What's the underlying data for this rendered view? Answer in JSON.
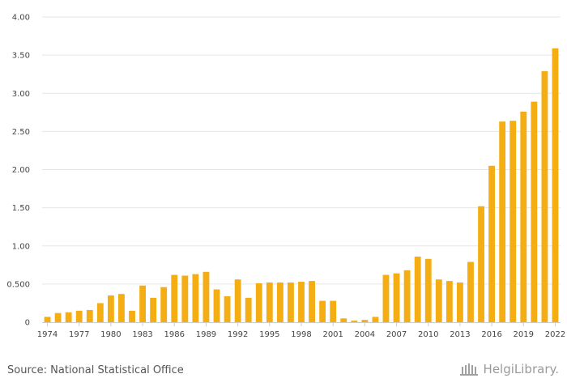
{
  "chart_data": {
    "type": "bar",
    "categories": [
      "1974",
      "1975",
      "1976",
      "1977",
      "1978",
      "1979",
      "1980",
      "1981",
      "1982",
      "1983",
      "1984",
      "1985",
      "1986",
      "1987",
      "1988",
      "1989",
      "1990",
      "1991",
      "1992",
      "1993",
      "1994",
      "1995",
      "1996",
      "1997",
      "1998",
      "1999",
      "2000",
      "2001",
      "2002",
      "2003",
      "2004",
      "2005",
      "2006",
      "2007",
      "2008",
      "2009",
      "2010",
      "2011",
      "2012",
      "2013",
      "2014",
      "2015",
      "2016",
      "2017",
      "2018",
      "2019",
      "2020",
      "2021",
      "2022"
    ],
    "values": [
      0.07,
      0.12,
      0.13,
      0.15,
      0.16,
      0.25,
      0.35,
      0.37,
      0.15,
      0.48,
      0.32,
      0.46,
      0.62,
      0.61,
      0.63,
      0.66,
      0.43,
      0.34,
      0.56,
      0.32,
      0.51,
      0.52,
      0.52,
      0.52,
      0.53,
      0.54,
      0.28,
      0.28,
      0.05,
      0.02,
      0.03,
      0.07,
      0.62,
      0.64,
      0.68,
      0.86,
      0.83,
      0.56,
      0.54,
      0.52,
      0.79,
      1.52,
      2.05,
      2.63,
      2.64,
      2.76,
      2.89,
      3.29,
      3.59
    ],
    "x_tick_labels": [
      "1974",
      "1977",
      "1980",
      "1983",
      "1986",
      "1989",
      "1992",
      "1995",
      "1998",
      "2001",
      "2004",
      "2007",
      "2010",
      "2013",
      "2016",
      "2019",
      "2022"
    ],
    "y_tick_labels": [
      "0",
      "0.500",
      "1.00",
      "1.50",
      "2.00",
      "2.50",
      "3.00",
      "3.50",
      "4.00"
    ],
    "ylim": [
      0,
      4
    ],
    "grid": true,
    "bar_color": "#f4ae14",
    "title": "",
    "xlabel": "",
    "ylabel": ""
  },
  "footer": {
    "source": "Source: National Statistical Office",
    "logo_text": "HelgiLibrary.",
    "logo_icon": "library-building-icon"
  }
}
